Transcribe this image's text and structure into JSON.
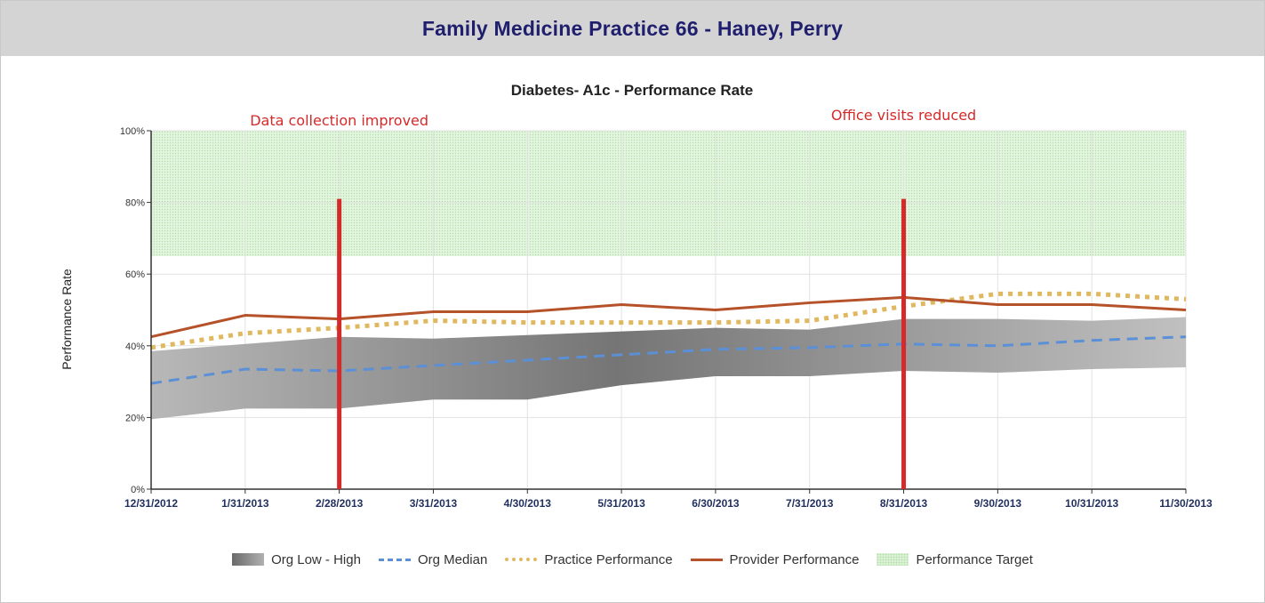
{
  "header": {
    "title": "Family Medicine Practice 66 - Haney, Perry"
  },
  "chart_data": {
    "type": "line",
    "title": "Diabetes- A1c -  Performance Rate",
    "ylabel": "Performance Rate",
    "xlabel": "",
    "ylim": [
      0,
      100
    ],
    "yticks": [
      "0%",
      "20%",
      "40%",
      "60%",
      "80%",
      "100%"
    ],
    "categories": [
      "12/31/2012",
      "1/31/2013",
      "2/28/2013",
      "3/31/2013",
      "4/30/2013",
      "5/31/2013",
      "6/30/2013",
      "7/31/2013",
      "8/31/2013",
      "9/30/2013",
      "10/31/2013",
      "11/30/2013"
    ],
    "grid": true,
    "legend_position": "bottom",
    "target_range": {
      "name": "Performance Target",
      "low": 65,
      "high": 100,
      "color": "#ddf2d8"
    },
    "range_band": {
      "name": "Org Low - High",
      "low": [
        19.5,
        22.5,
        22.5,
        25,
        25,
        29,
        31.5,
        31.5,
        33,
        32.5,
        33.5,
        34
      ],
      "high": [
        38.5,
        40.5,
        42.5,
        42,
        43,
        44,
        45,
        44.5,
        47.5,
        47.5,
        47,
        48
      ],
      "color": "#8c8c8c"
    },
    "series": [
      {
        "name": "Org Median",
        "style": "dashed",
        "color": "#5b8fd6",
        "values": [
          29.5,
          33.5,
          33,
          34.5,
          36,
          37.5,
          39,
          39.5,
          40.5,
          40,
          41.5,
          42.5
        ]
      },
      {
        "name": "Practice Performance",
        "style": "dotted",
        "color": "#e0b860",
        "values": [
          39.5,
          43.5,
          45,
          47,
          46.5,
          46.5,
          46.5,
          47,
          51,
          54.5,
          54.5,
          53
        ]
      },
      {
        "name": "Provider Performance",
        "style": "solid",
        "color": "#b5522a",
        "values": [
          42.5,
          48.5,
          47.5,
          49.5,
          49.5,
          51.5,
          50,
          52,
          53.5,
          51.5,
          51.5,
          50
        ]
      }
    ],
    "annotations": [
      {
        "text": "Data collection improved",
        "x": "2/28/2013",
        "y_top": 81,
        "color": "#d42a2a"
      },
      {
        "text": "Office visits reduced",
        "x": "8/31/2013",
        "y_top": 81,
        "color": "#d42a2a"
      }
    ]
  }
}
